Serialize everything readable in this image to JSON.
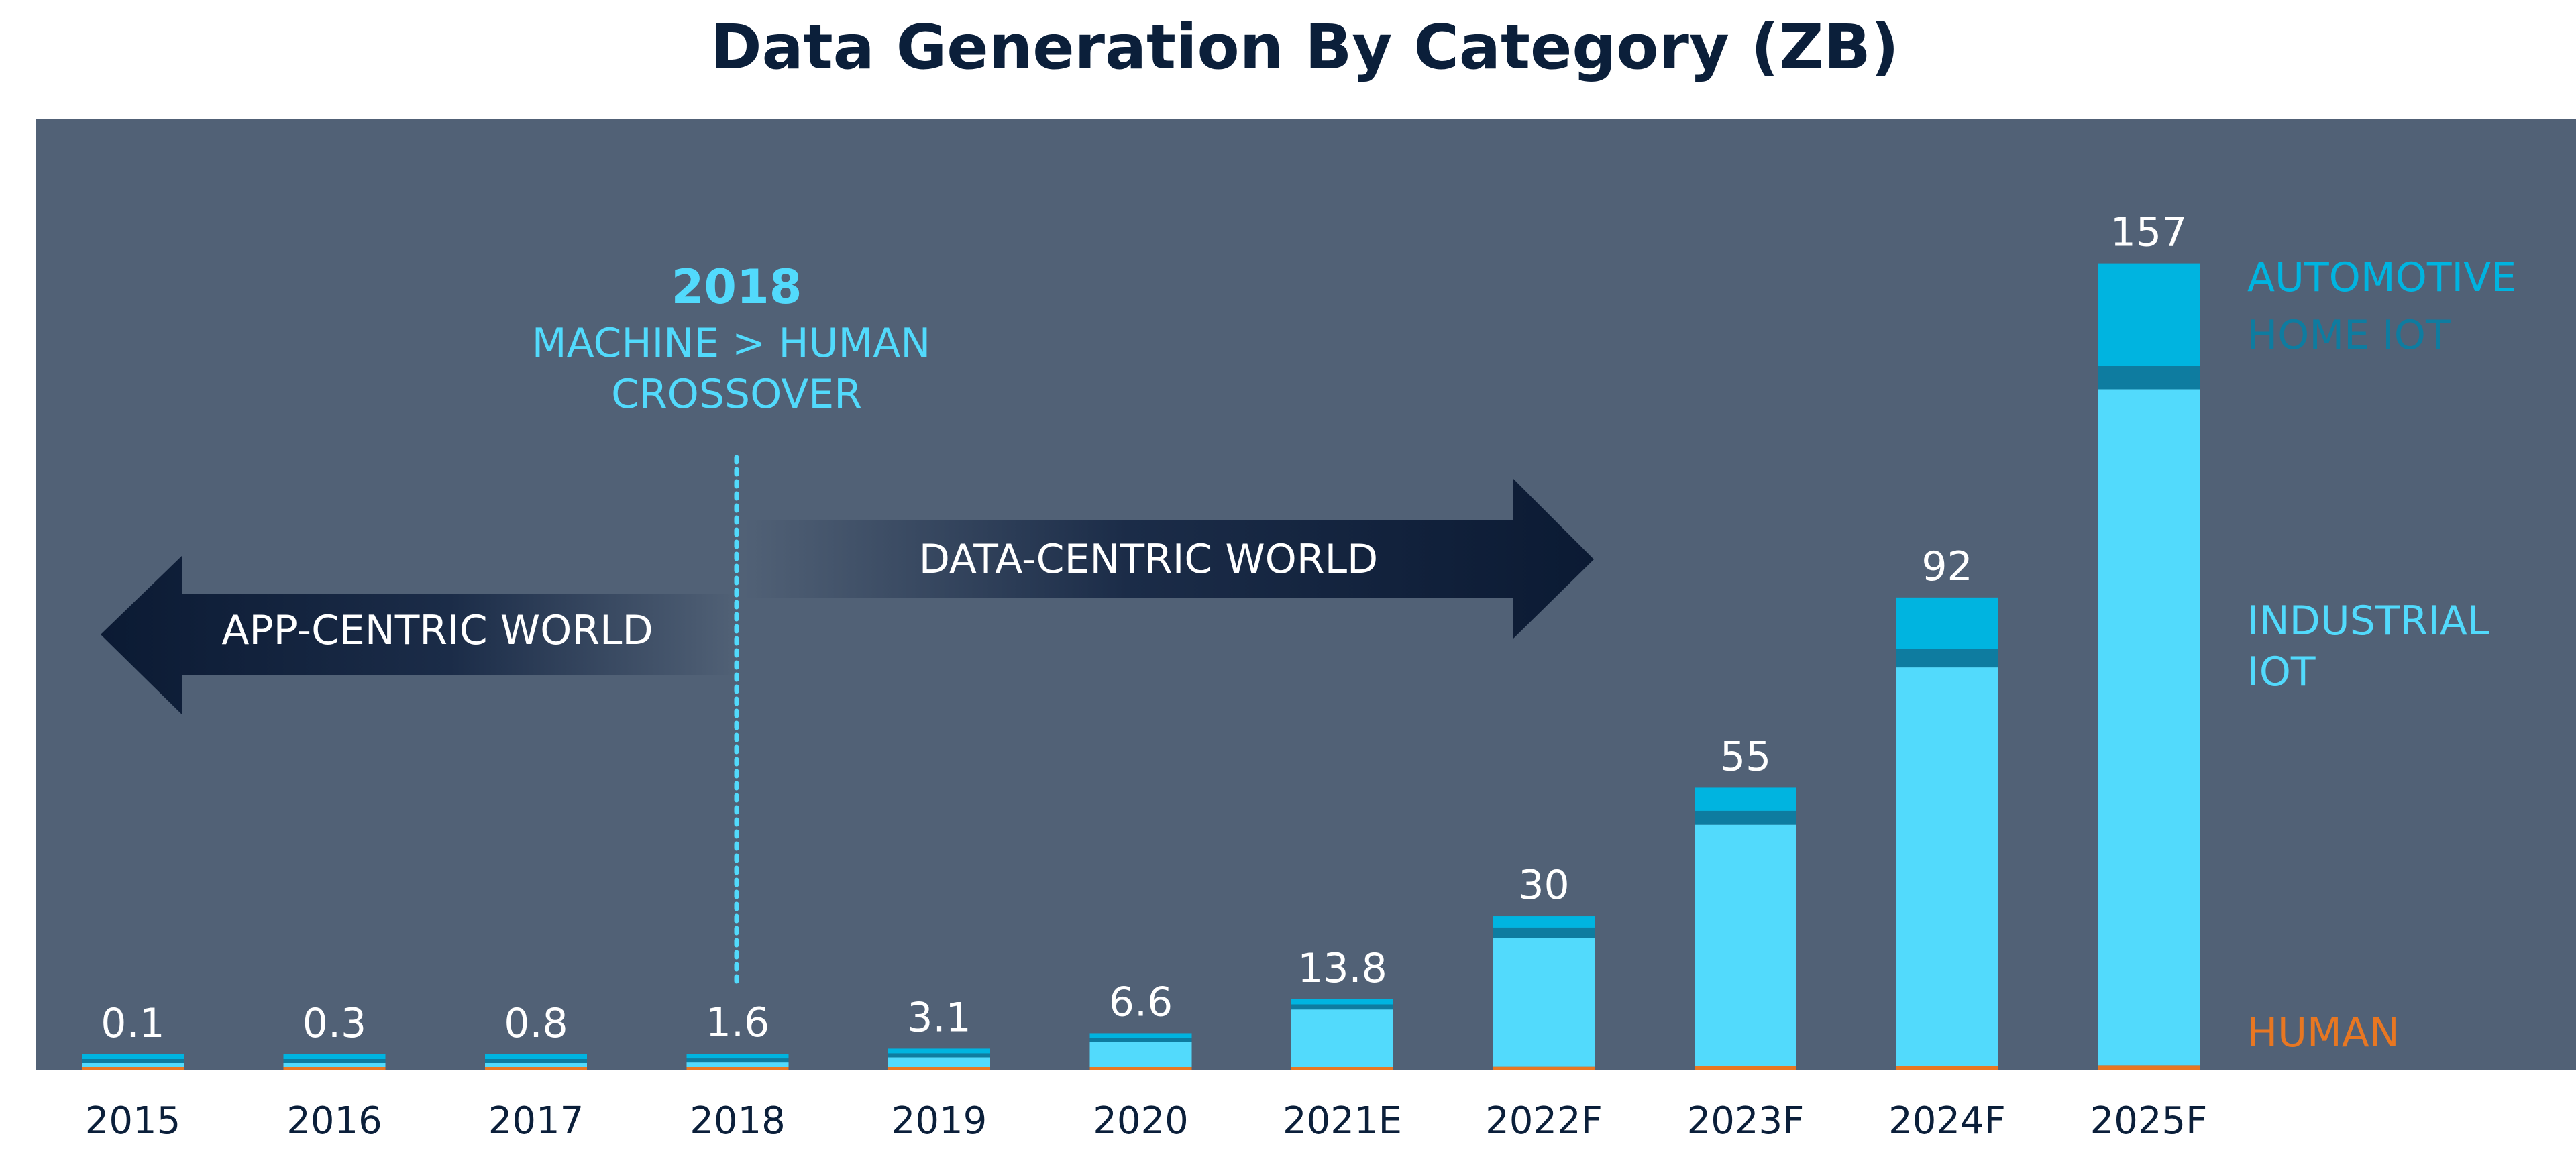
{
  "chart_data": {
    "type": "bar",
    "stacked": true,
    "title": "Data Generation By Category (ZB)",
    "xlabel": "",
    "ylabel": "",
    "ylim": [
      0,
      185
    ],
    "categories": [
      "2015",
      "2016",
      "2017",
      "2018",
      "2019",
      "2020",
      "2021E",
      "2022F",
      "2023F",
      "2024F",
      "2025F"
    ],
    "totals": [
      0.1,
      0.3,
      0.8,
      1.6,
      3.1,
      6.6,
      13.8,
      30,
      55,
      92,
      157
    ],
    "total_labels": [
      "0.1",
      "0.3",
      "0.8",
      "1.6",
      "3.1",
      "6.6",
      "13.8",
      "30",
      "55",
      "92",
      "157"
    ],
    "series": [
      {
        "name": "HUMAN",
        "color": "#E87722",
        "values": [
          0.05,
          0.1,
          0.2,
          0.3,
          0.4,
          0.5,
          0.6,
          0.7,
          0.8,
          0.9,
          1.0
        ]
      },
      {
        "name": "INDUSTRIAL IOT",
        "color": "#52DAFC",
        "values": [
          0.03,
          0.15,
          0.45,
          0.9,
          1.9,
          4.9,
          11.2,
          25.1,
          47.0,
          77.5,
          131.5
        ]
      },
      {
        "name": "HOME IOT",
        "color": "#0E7CA0",
        "values": [
          0.01,
          0.03,
          0.08,
          0.2,
          0.4,
          0.6,
          1.0,
          2.0,
          2.7,
          3.6,
          4.5
        ]
      },
      {
        "name": "AUTOMOTIVE",
        "color": "#00B4E0",
        "values": [
          0.01,
          0.02,
          0.07,
          0.2,
          0.4,
          0.6,
          1.0,
          2.2,
          4.5,
          10.0,
          20.0
        ]
      }
    ],
    "legend": {
      "position": "right",
      "entries": [
        {
          "lines": [
            "AUTOMOTIVE"
          ],
          "color": "#00B4E0",
          "series": "AUTOMOTIVE"
        },
        {
          "lines": [
            "HOME IOT"
          ],
          "color": "#0E7CA0",
          "series": "HOME IOT"
        },
        {
          "lines": [
            "INDUSTRIAL",
            "IOT"
          ],
          "color": "#52DAFC",
          "series": "INDUSTRIAL IOT"
        },
        {
          "lines": [
            "HUMAN"
          ],
          "color": "#E87722",
          "series": "HUMAN"
        }
      ]
    },
    "annotations": {
      "crossover": {
        "year": "2018",
        "line1": "MACHINE > HUMAN",
        "line2": "CROSSOVER",
        "at_category": "2018",
        "color": "#52DAFC"
      },
      "left_arrow": "APP-CENTRIC WORLD",
      "right_arrow": "DATA-CENTRIC WORLD"
    }
  },
  "colors": {
    "plot_background": "#516176",
    "title": "#0B1F3A",
    "axis_text": "#0B1F3A",
    "value_label": "#ffffff",
    "arrow_dark": "#0B1A33"
  }
}
